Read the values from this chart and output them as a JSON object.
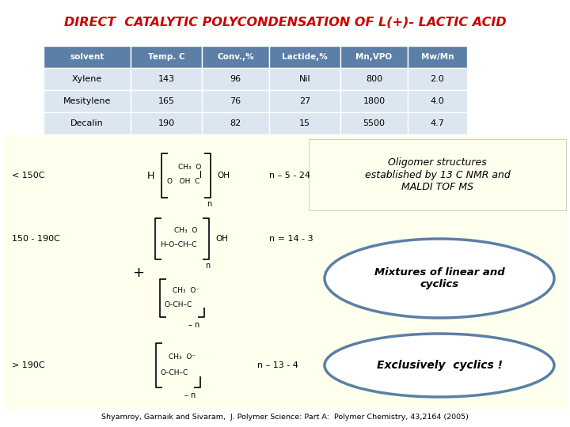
{
  "title": "DIRECT  CATALYTIC POLYCONDENSATION OF L(+)- LACTIC ACID",
  "title_color": "#cc0000",
  "slide_bg": "#ffffff",
  "table_header": [
    "solvent",
    "Temp. C",
    "Conv.,%",
    "Lactide,%",
    "Mn,VPO",
    "Mw/Mn"
  ],
  "table_rows": [
    [
      "Xylene",
      "143",
      "96",
      "Nil",
      "800",
      "2.0"
    ],
    [
      "Mesitylene",
      "165",
      "76",
      "27",
      "1800",
      "4.0"
    ],
    [
      "Decalin",
      "190",
      "82",
      "15",
      "5500",
      "4.7"
    ]
  ],
  "table_header_bg": "#5b7fa6",
  "table_header_fg": "#ffffff",
  "table_row_bg": "#dce6f1",
  "yellow_bg": "#ffffee",
  "section1_label": "< 150C",
  "section1_formula": "n – 5 - 24",
  "section1_note": "Oligomer structures\nestablished by 13 C NMR and\nMALDI TOF MS",
  "section2_label": "150 - 190C",
  "section2_formula": "n = 14 - 3",
  "section2_note": "Mixtures of linear and\ncyclics",
  "section3_label": "> 190C",
  "section3_formula": "n – 13 - 4",
  "section3_note": "Exclusively  cyclics !",
  "ellipse_edge": "#5b7fa6",
  "citation": "Shyamroy, Garnaik and Sivaram,  J. Polymer Science: Part A:  Polymer Chemistry, 43,2164 (2005)"
}
